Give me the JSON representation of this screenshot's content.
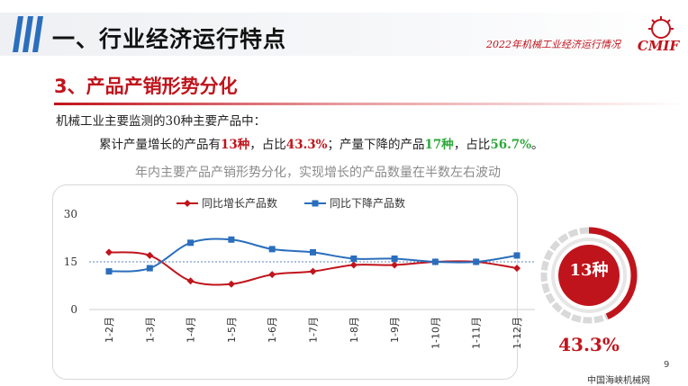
{
  "header": {
    "section_title": "一、行业经济运行特点",
    "report_label": "2022年机械工业经济运行情况",
    "logo_text": "CMIF"
  },
  "sub_title": "3、产品产销形势分化",
  "intro": "机械工业主要监测的30种主要产品中：",
  "stats": {
    "t1": "累计产量增长的产品有",
    "n1": "13种",
    "t2": "，占比",
    "p1": "43.3%",
    "t3": "；产量下降的产品",
    "n2": "17种",
    "t4": "，占比",
    "p2": "56.7%",
    "t5": "。"
  },
  "chart_caption": "年内主要产品产销形势分化，实现增长的产品数量在半数左右波动",
  "colors": {
    "accent": "#c0141c",
    "decline": "#2a6ebd",
    "green": "#2fa83c"
  },
  "chart_data": {
    "type": "line",
    "categories": [
      "1-2月",
      "1-3月",
      "1-4月",
      "1-5月",
      "1-6月",
      "1-7月",
      "1-8月",
      "1-9月",
      "1-10月",
      "1-11月",
      "1-12月"
    ],
    "series": [
      {
        "name": "同比增长产品数",
        "color": "#c0141c",
        "marker": "diamond",
        "values": [
          18,
          17,
          9,
          8,
          11,
          12,
          14,
          14,
          15,
          15,
          13
        ]
      },
      {
        "name": "同比下降产品数",
        "color": "#2a6ebd",
        "marker": "square",
        "values": [
          12,
          13,
          21,
          22,
          19,
          18,
          16,
          16,
          15,
          15,
          17
        ]
      }
    ],
    "y_ticks": [
      "0",
      "15",
      "30"
    ],
    "ylim": [
      0,
      30
    ],
    "reference_line": 15,
    "legend_position": "top",
    "grid": false
  },
  "ring": {
    "label": "13种",
    "percent_text": "43.3%",
    "fraction": 0.433
  },
  "page_number": "9",
  "footer": "中国海峡机械网"
}
